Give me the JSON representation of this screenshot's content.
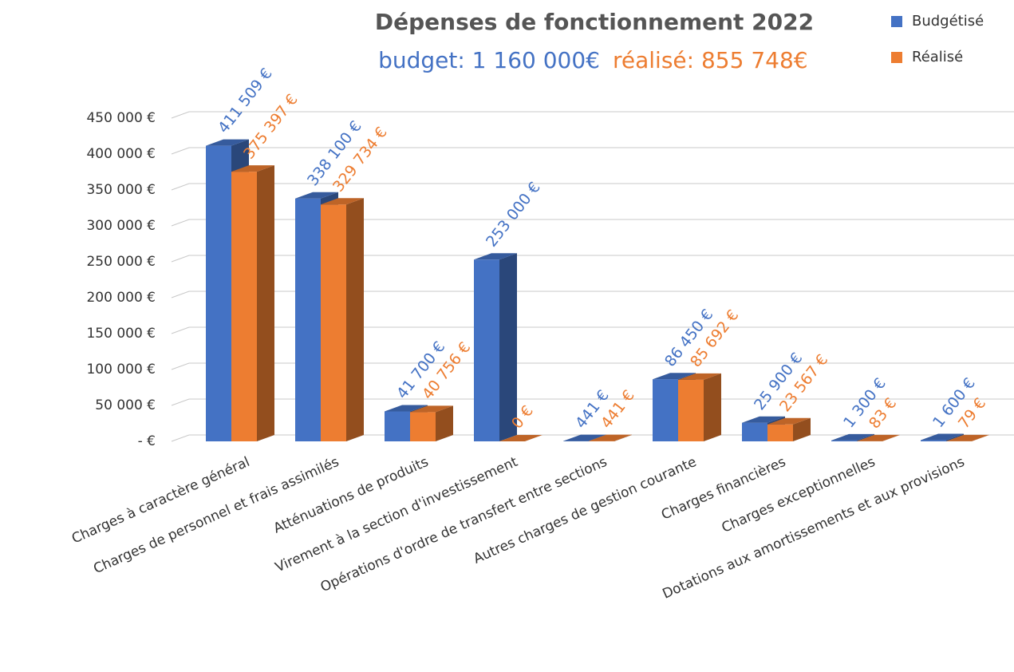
{
  "chart_data": {
    "type": "bar3d",
    "title": "Dépenses de fonctionnement 2022",
    "subtitles": [
      "budget: 1 160 000€",
      "réalisé: 855 748€"
    ],
    "categories": [
      "Charges à caractère général",
      "Charges de personnel et frais  assimilés",
      "Atténuations de produits",
      "Virement à la section  d'investissement",
      "Opérations d'ordre de transfert  entre sections",
      "Autres charges de gestion courante",
      "Charges financières",
      "Charges exceptionnelles",
      "Dotations aux amortissements et aux provisions"
    ],
    "series": [
      {
        "name": "Budgétisé",
        "color": "#4472c4",
        "values": [
          411509,
          338100,
          41700,
          253000,
          441,
          86450,
          25900,
          1300,
          1600
        ],
        "value_labels": [
          "411 509 €",
          "338 100 €",
          "41 700 €",
          "253 000 €",
          "441 €",
          "86 450 €",
          "25 900 €",
          "1 300 €",
          "1 600 €"
        ]
      },
      {
        "name": "Réalisé",
        "color": "#ed7d31",
        "values": [
          375397,
          329734,
          40756,
          0,
          441,
          85692,
          23567,
          83,
          79
        ],
        "value_labels": [
          "375 397 €",
          "329 734 €",
          "40 756 €",
          "0 €",
          "441 €",
          "85 692 €",
          "23 567 €",
          "83 €",
          "79 €"
        ]
      }
    ],
    "ylim": [
      0,
      450000
    ],
    "yticks": [
      {
        "value": 0,
        "label": "- €"
      },
      {
        "value": 50000,
        "label": "50 000 €"
      },
      {
        "value": 100000,
        "label": "100 000 €"
      },
      {
        "value": 150000,
        "label": "150 000 €"
      },
      {
        "value": 200000,
        "label": "200 000 €"
      },
      {
        "value": 250000,
        "label": "250 000 €"
      },
      {
        "value": 300000,
        "label": "300 000 €"
      },
      {
        "value": 350000,
        "label": "350 000 €"
      },
      {
        "value": 400000,
        "label": "400 000 €"
      },
      {
        "value": 450000,
        "label": "450 000 €"
      }
    ],
    "grid": true,
    "legend": "top-right"
  }
}
